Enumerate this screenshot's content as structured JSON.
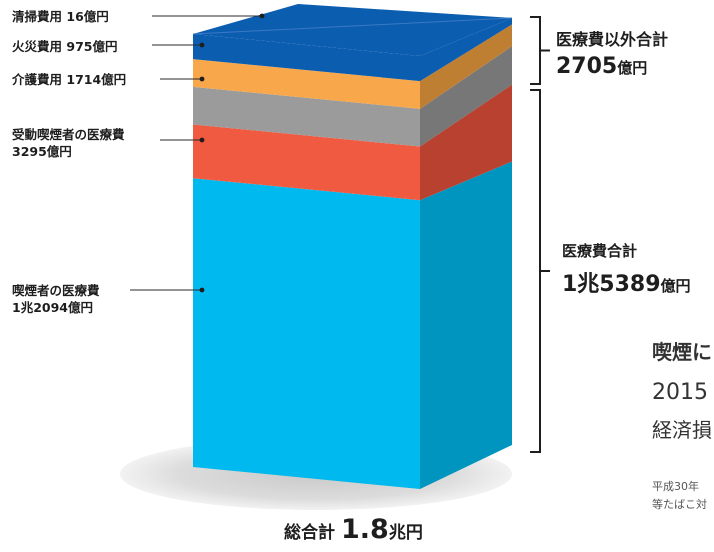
{
  "chart_data": {
    "type": "bar",
    "stacked": true,
    "unit": "億円",
    "segments": [
      {
        "key": "smoker",
        "label": "喫煙者の医療費",
        "value_text": "1兆2094億円",
        "value": 12094,
        "color": "#00b9ee",
        "side_color": "#0095bf"
      },
      {
        "key": "passive",
        "label": "受動喫煙者の医療費",
        "value_text": "3295億円",
        "value": 3295,
        "color": "#f05a40",
        "side_color": "#b84130"
      },
      {
        "key": "care",
        "label": "介護費用",
        "value_text": "1714億円",
        "value": 1714,
        "color": "#9b9b9b",
        "side_color": "#777777"
      },
      {
        "key": "fire",
        "label": "火災費用",
        "value_text": "975億円",
        "value": 975,
        "color": "#f8a84a",
        "side_color": "#bf7f32"
      },
      {
        "key": "cleaning",
        "label": "清掃費用",
        "value_text": "16億円",
        "value": 16,
        "color": "#0b5db0",
        "side_color": "#0b5db0"
      }
    ],
    "brackets": [
      {
        "title": "医療費以外合計",
        "value_main": "2705",
        "value_unit": "億円",
        "value": 2705
      },
      {
        "title": "医療費合計",
        "value_main": "1兆5389",
        "value_unit": "億円",
        "value": 15389
      }
    ],
    "total": {
      "label": "総合計",
      "value": "1.8",
      "unit": "兆円"
    }
  },
  "side_text": {
    "title": "喫煙に",
    "line1": "2015",
    "line2": "経済損",
    "note1": "平成30年",
    "note2": "等たばこ対"
  }
}
